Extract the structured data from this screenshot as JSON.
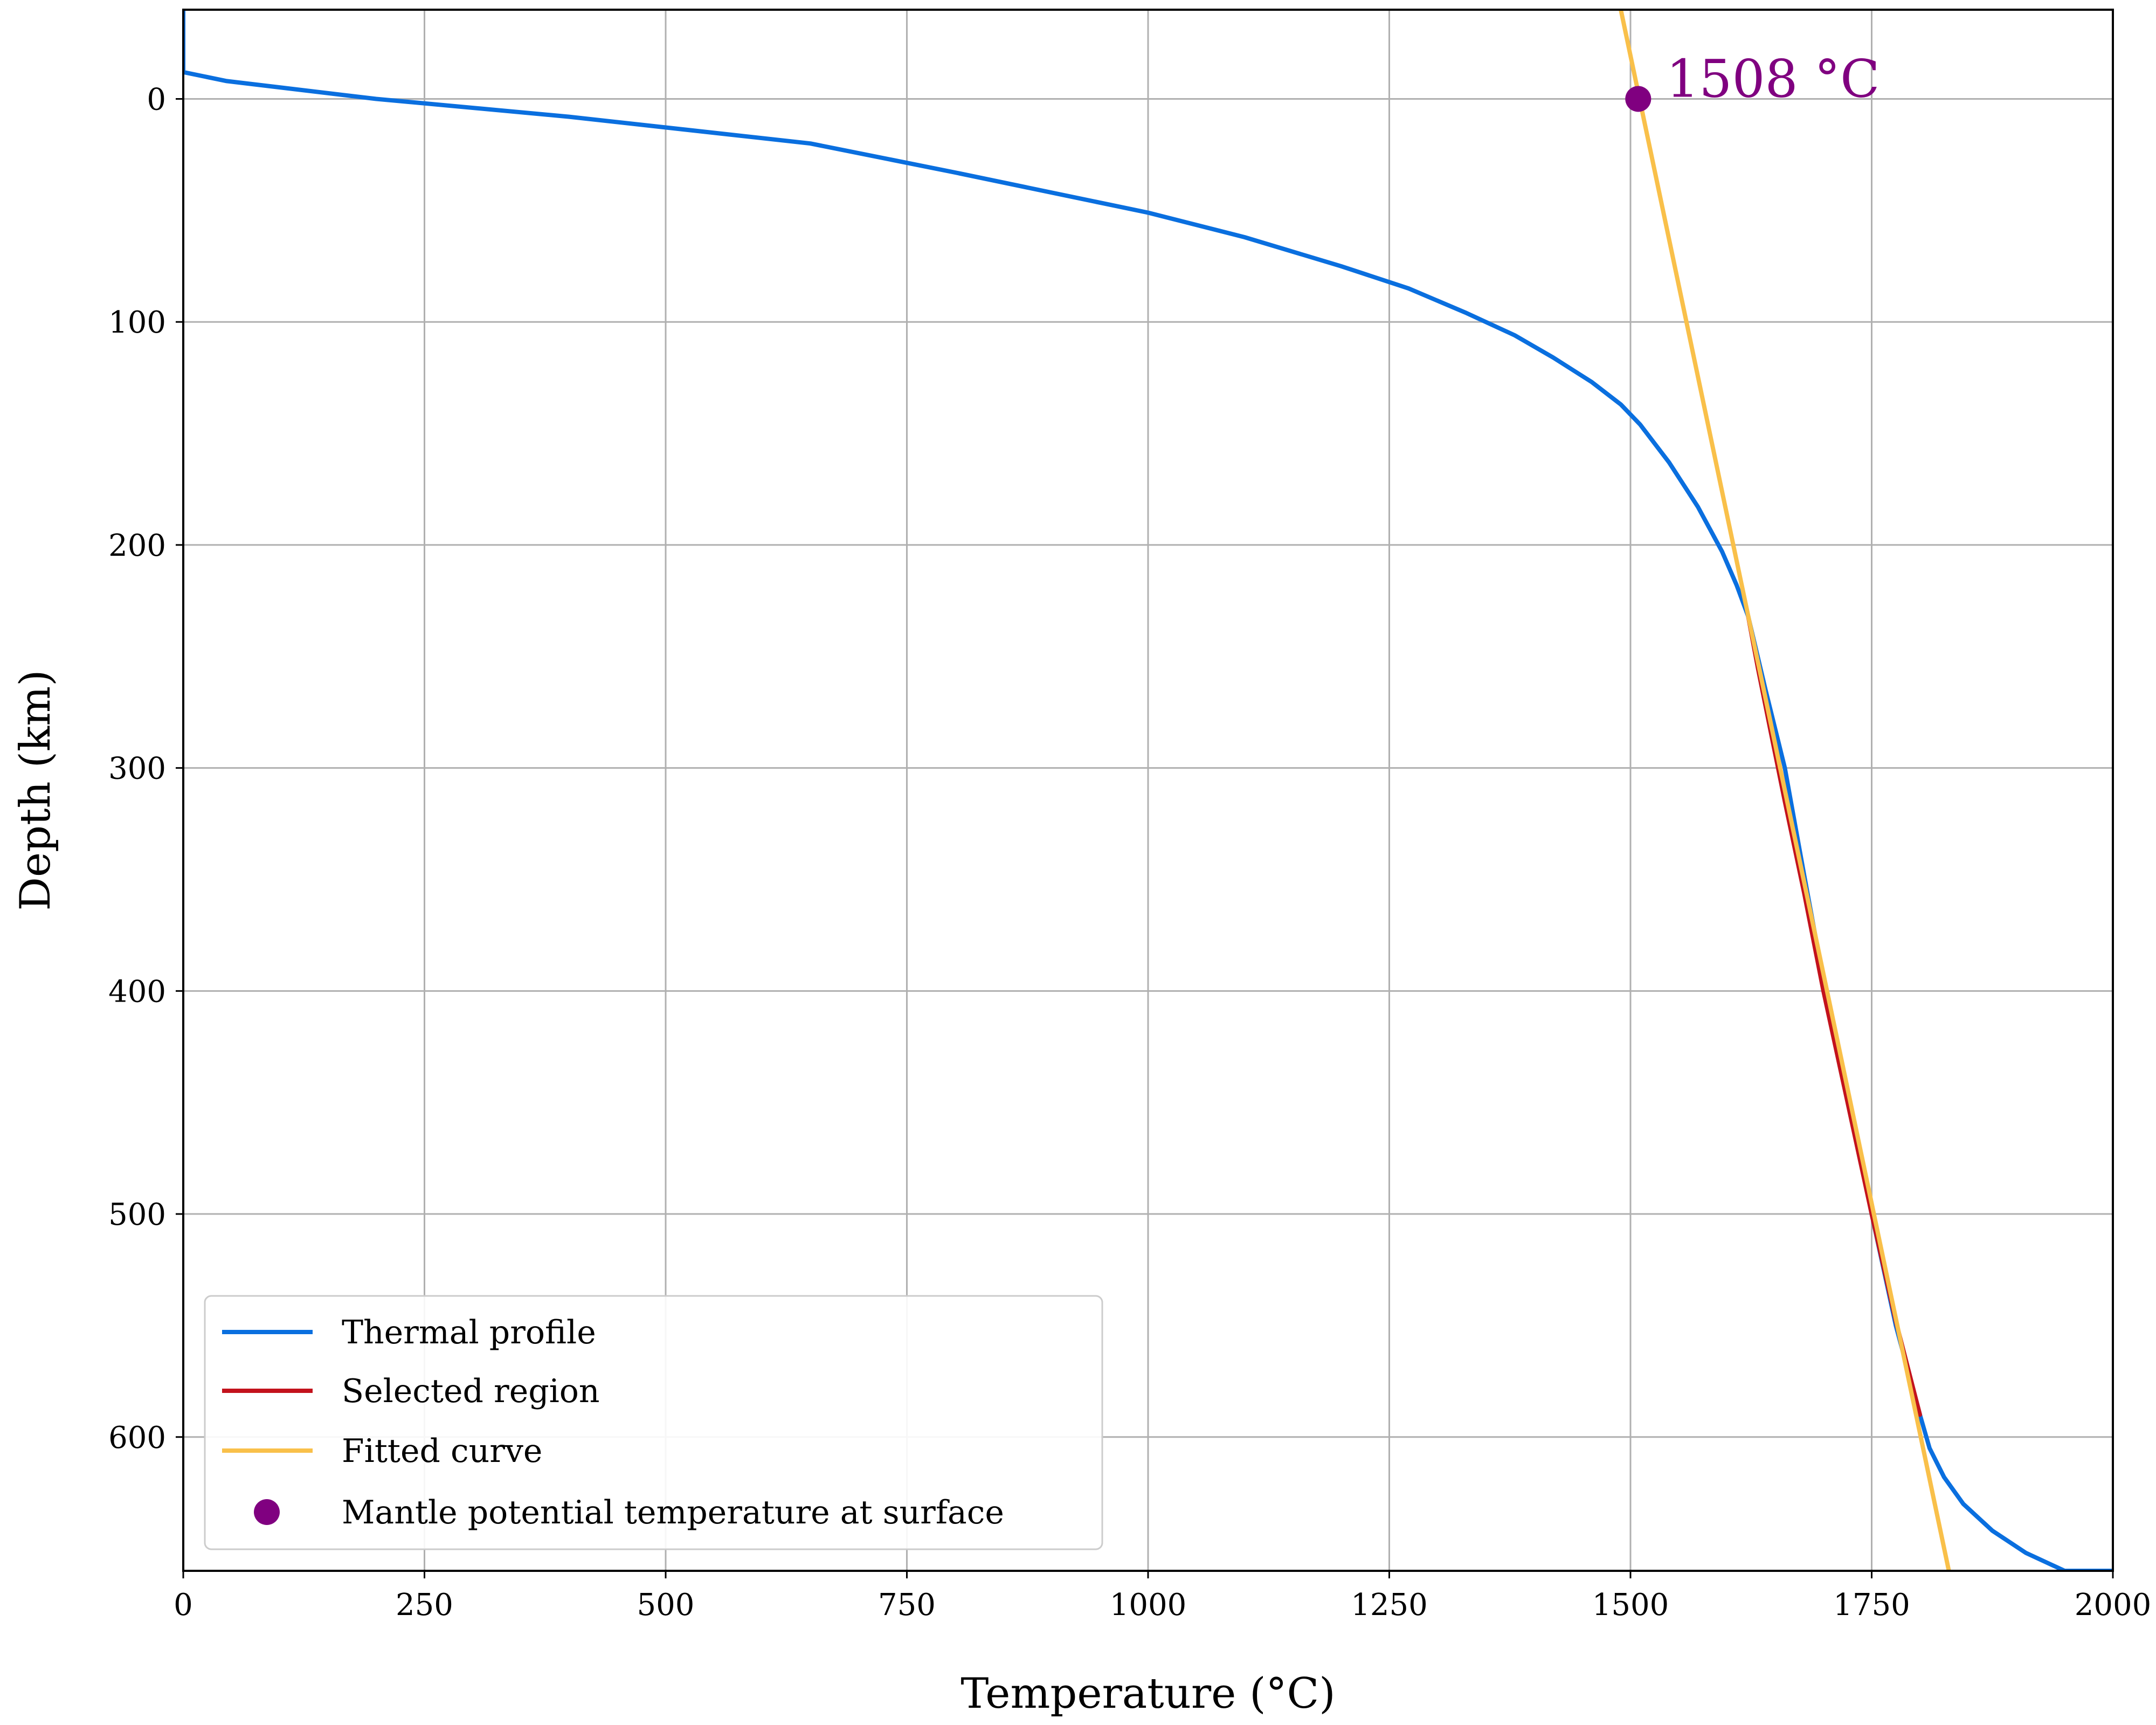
{
  "chart_data": {
    "type": "line",
    "title": "",
    "xlabel": "Temperature (°C)",
    "ylabel": "Depth (km)",
    "xlim": [
      0,
      2000
    ],
    "ylim": [
      660,
      -40
    ],
    "y_inverted": true,
    "grid": true,
    "x_ticks": [
      0,
      250,
      500,
      750,
      1000,
      1250,
      1500,
      1750,
      2000
    ],
    "y_ticks": [
      0,
      100,
      200,
      300,
      400,
      500,
      600
    ],
    "legend_position": "lower-left",
    "series": [
      {
        "name": "Thermal profile",
        "color": "#0a6fdf",
        "x": [
          0,
          0,
          45,
          200,
          400,
          650,
          800,
          1000,
          1100,
          1200,
          1270,
          1330,
          1380,
          1420,
          1460,
          1490,
          1510,
          1540,
          1570,
          1595,
          1610,
          1622,
          1640,
          1660,
          1680,
          1700,
          1725,
          1750,
          1775,
          1800,
          1810,
          1825,
          1845,
          1875,
          1910,
          1950,
          2000
        ],
        "y": [
          -40,
          -12,
          -8,
          0,
          8,
          20,
          33,
          51,
          62,
          75,
          85,
          96,
          106,
          116,
          127,
          137,
          146,
          163,
          183,
          203,
          218,
          232,
          265,
          300,
          348,
          395,
          445,
          500,
          550,
          590,
          605,
          618,
          630,
          642,
          652,
          660,
          660
        ]
      },
      {
        "name": "Selected region",
        "color": "#c3121c",
        "x": [
          1622,
          1632,
          1645,
          1660,
          1680,
          1700,
          1725,
          1750,
          1775,
          1800
        ],
        "y": [
          232,
          255,
          283,
          315,
          356,
          400,
          450,
          500,
          548,
          590
        ]
      },
      {
        "name": "Fitted curve",
        "color": "#f9c04a",
        "x": [
          1490,
          1830
        ],
        "y": [
          -40,
          660
        ]
      },
      {
        "name": "Mantle potential temperature at surface",
        "type": "scatter",
        "color": "#800080",
        "x": [
          1508
        ],
        "y": [
          0
        ]
      }
    ],
    "annotations": [
      {
        "text": "1508 °C",
        "x": 1508,
        "y": 0,
        "color": "#800080"
      }
    ]
  }
}
